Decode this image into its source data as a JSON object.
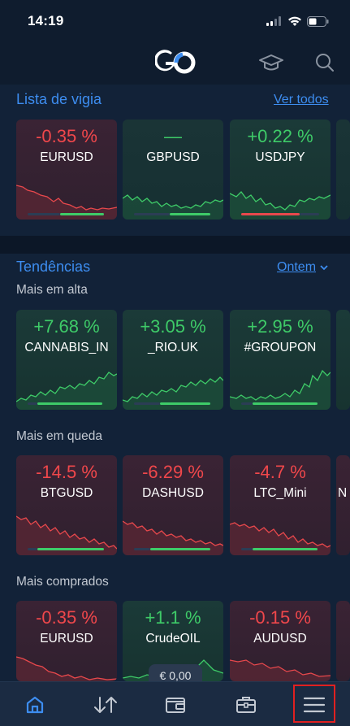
{
  "status": {
    "time": "14:19"
  },
  "watchlist": {
    "title": "Lista de vigia",
    "see_all": "Ver todos",
    "cards": [
      {
        "change": "-0.35 %",
        "symbol": "EURUSD",
        "trend": "down"
      },
      {
        "change": "—",
        "symbol": "GBPUSD",
        "trend": "flat"
      },
      {
        "change": "+0.22 %",
        "symbol": "USDJPY",
        "trend": "up"
      }
    ]
  },
  "trends": {
    "title": "Tendências",
    "period": "Ontem",
    "top_gainers": {
      "label": "Mais em alta",
      "cards": [
        {
          "change": "+7.68 %",
          "symbol": "CANNABIS_IN",
          "trend": "up"
        },
        {
          "change": "+3.05 %",
          "symbol": "_RIO.UK",
          "trend": "up"
        },
        {
          "change": "+2.95 %",
          "symbol": "#GROUPON",
          "trend": "up"
        }
      ]
    },
    "top_losers": {
      "label": "Mais em queda",
      "cards": [
        {
          "change": "-14.5 %",
          "symbol": "BTGUSD",
          "trend": "down"
        },
        {
          "change": "-6.29 %",
          "symbol": "DASHUSD",
          "trend": "down"
        },
        {
          "change": "-4.7 %",
          "symbol": "LTC_Mini",
          "trend": "down"
        }
      ],
      "partial_symbol": "N"
    },
    "most_bought": {
      "label": "Mais comprados",
      "cards": [
        {
          "change": "-0.35 %",
          "symbol": "EURUSD",
          "trend": "down"
        },
        {
          "change": "+1.1 %",
          "symbol": "CrudeOIL",
          "trend": "up"
        },
        {
          "change": "-0.15 %",
          "symbol": "AUDUSD",
          "trend": "down"
        }
      ]
    }
  },
  "balance": "€ 0,00",
  "colors": {
    "accent": "#3d8df0",
    "up": "#3ecb68",
    "down": "#f0474b",
    "background": "#0f1c2e"
  },
  "nav": [
    {
      "name": "home",
      "icon": "home-icon"
    },
    {
      "name": "trade",
      "icon": "arrows-updown-icon"
    },
    {
      "name": "wallet",
      "icon": "wallet-icon"
    },
    {
      "name": "portfolio",
      "icon": "briefcase-icon"
    },
    {
      "name": "menu",
      "icon": "hamburger-menu-icon"
    }
  ]
}
